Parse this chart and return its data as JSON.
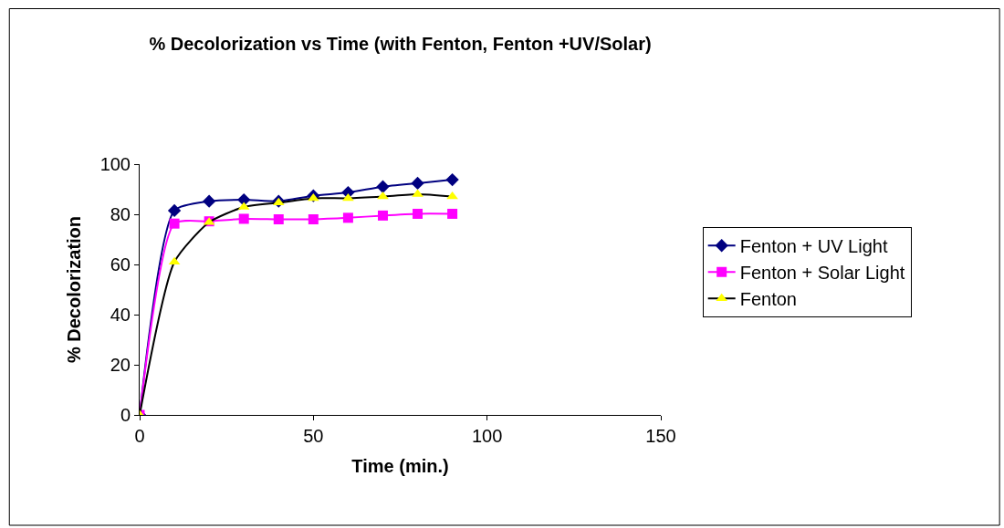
{
  "chart_data": {
    "type": "line",
    "title": "% Decolorization vs Time (with Fenton, Fenton +UV/Solar)",
    "xlabel": "Time (min.)",
    "ylabel": "% Decolorization",
    "x": [
      0,
      10,
      20,
      30,
      40,
      50,
      60,
      70,
      80,
      90
    ],
    "series": [
      {
        "name": "Fenton + UV Light",
        "color": "#000080",
        "marker": "diamond",
        "values": [
          0,
          81.5,
          85.2,
          85.8,
          85.2,
          87.4,
          88.7,
          91,
          92.4,
          93.8
        ]
      },
      {
        "name": "Fenton + Solar Light",
        "color": "#ff00ff",
        "marker": "square",
        "values": [
          0,
          76.3,
          77.2,
          78.2,
          78,
          78,
          78.6,
          79.5,
          80.2,
          80.2
        ]
      },
      {
        "name": "Fenton",
        "color": "#000000",
        "marker": "triangle",
        "colors": [
          "#ffff00",
          "#ffff00",
          "#ffff00",
          "#ffff00",
          "#ffff00",
          "#ffff00",
          "#ffff00",
          "#ffff00",
          "#ffff00",
          "#ffff00"
        ],
        "values": [
          0,
          61,
          76.8,
          82.9,
          84.6,
          86.4,
          86.4,
          87.1,
          88,
          87.1
        ]
      }
    ],
    "xlim": [
      0,
      150
    ],
    "xticks": [
      0,
      50,
      100,
      150
    ],
    "ylim": [
      0,
      100
    ],
    "yticks": [
      0,
      20,
      40,
      60,
      80,
      100
    ],
    "legend": "right"
  }
}
